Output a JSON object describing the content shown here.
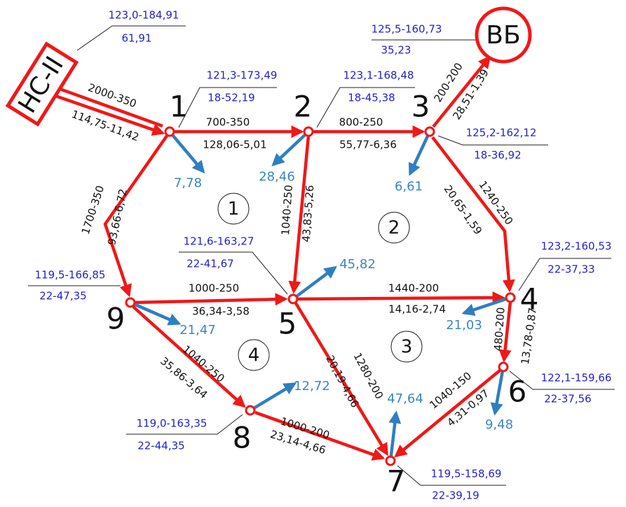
{
  "nodes": [
    {
      "label": "НС-II",
      "head": "123,0-184,91",
      "extra": "61,91"
    },
    {
      "label": "1",
      "head": "121,3-173,49",
      "extra": "18-52,19"
    },
    {
      "label": "2",
      "head": "123,1-168,48",
      "extra": "18-45,38"
    },
    {
      "label": "3",
      "head": "125,2-162,12",
      "extra": "18-36,92"
    },
    {
      "label": "4",
      "head": "123,2-160,53",
      "extra": "22-37,33"
    },
    {
      "label": "5",
      "head": "121,6-163,27",
      "extra": "22-41,67"
    },
    {
      "label": "6",
      "head": "122,1-159,66",
      "extra": "22-37,56"
    },
    {
      "label": "7",
      "head": "119,5-158,69",
      "extra": "22-39,19"
    },
    {
      "label": "8",
      "head": "119,0-163,35",
      "extra": "22-44,35"
    },
    {
      "label": "9",
      "head": "119,5-166,85",
      "extra": "22-47,35"
    },
    {
      "label": "ВБ",
      "head": "125,5-160,73",
      "extra": "35,23"
    }
  ],
  "pipes": [
    {
      "spec": "2000-350",
      "flow": "114,75-11,42"
    },
    {
      "spec": "700-350",
      "flow": "128,06-5,01"
    },
    {
      "spec": "800-250",
      "flow": "55,77-6,36"
    },
    {
      "spec": "200-200",
      "flow": "28,51-1,39"
    },
    {
      "spec": "1240-250",
      "flow": "20,65-1,59"
    },
    {
      "spec": "1700-350",
      "flow": "93,66-6,72"
    },
    {
      "spec": "1040-250",
      "flow": "43,83-5,26"
    },
    {
      "spec": "1000-250",
      "flow": "36,34-3,58"
    },
    {
      "spec": "1440-200",
      "flow": "14,16-2,74"
    },
    {
      "spec": "480-200",
      "flow": "13,78-0,87"
    },
    {
      "spec": "1280-200",
      "flow": "20,19-4,66"
    },
    {
      "spec": "1040-250",
      "flow": "35,86-3,64"
    },
    {
      "spec": "1000-200",
      "flow": "23,14-4,66"
    },
    {
      "spec": "1040-150",
      "flow": "4,31-0,97"
    }
  ],
  "outflows": [
    "7,78",
    "28,46",
    "6,61",
    "21,03",
    "45,82",
    "9,48",
    "47,64",
    "12,72",
    "21,47"
  ],
  "rings": [
    "1",
    "2",
    "3",
    "4"
  ]
}
